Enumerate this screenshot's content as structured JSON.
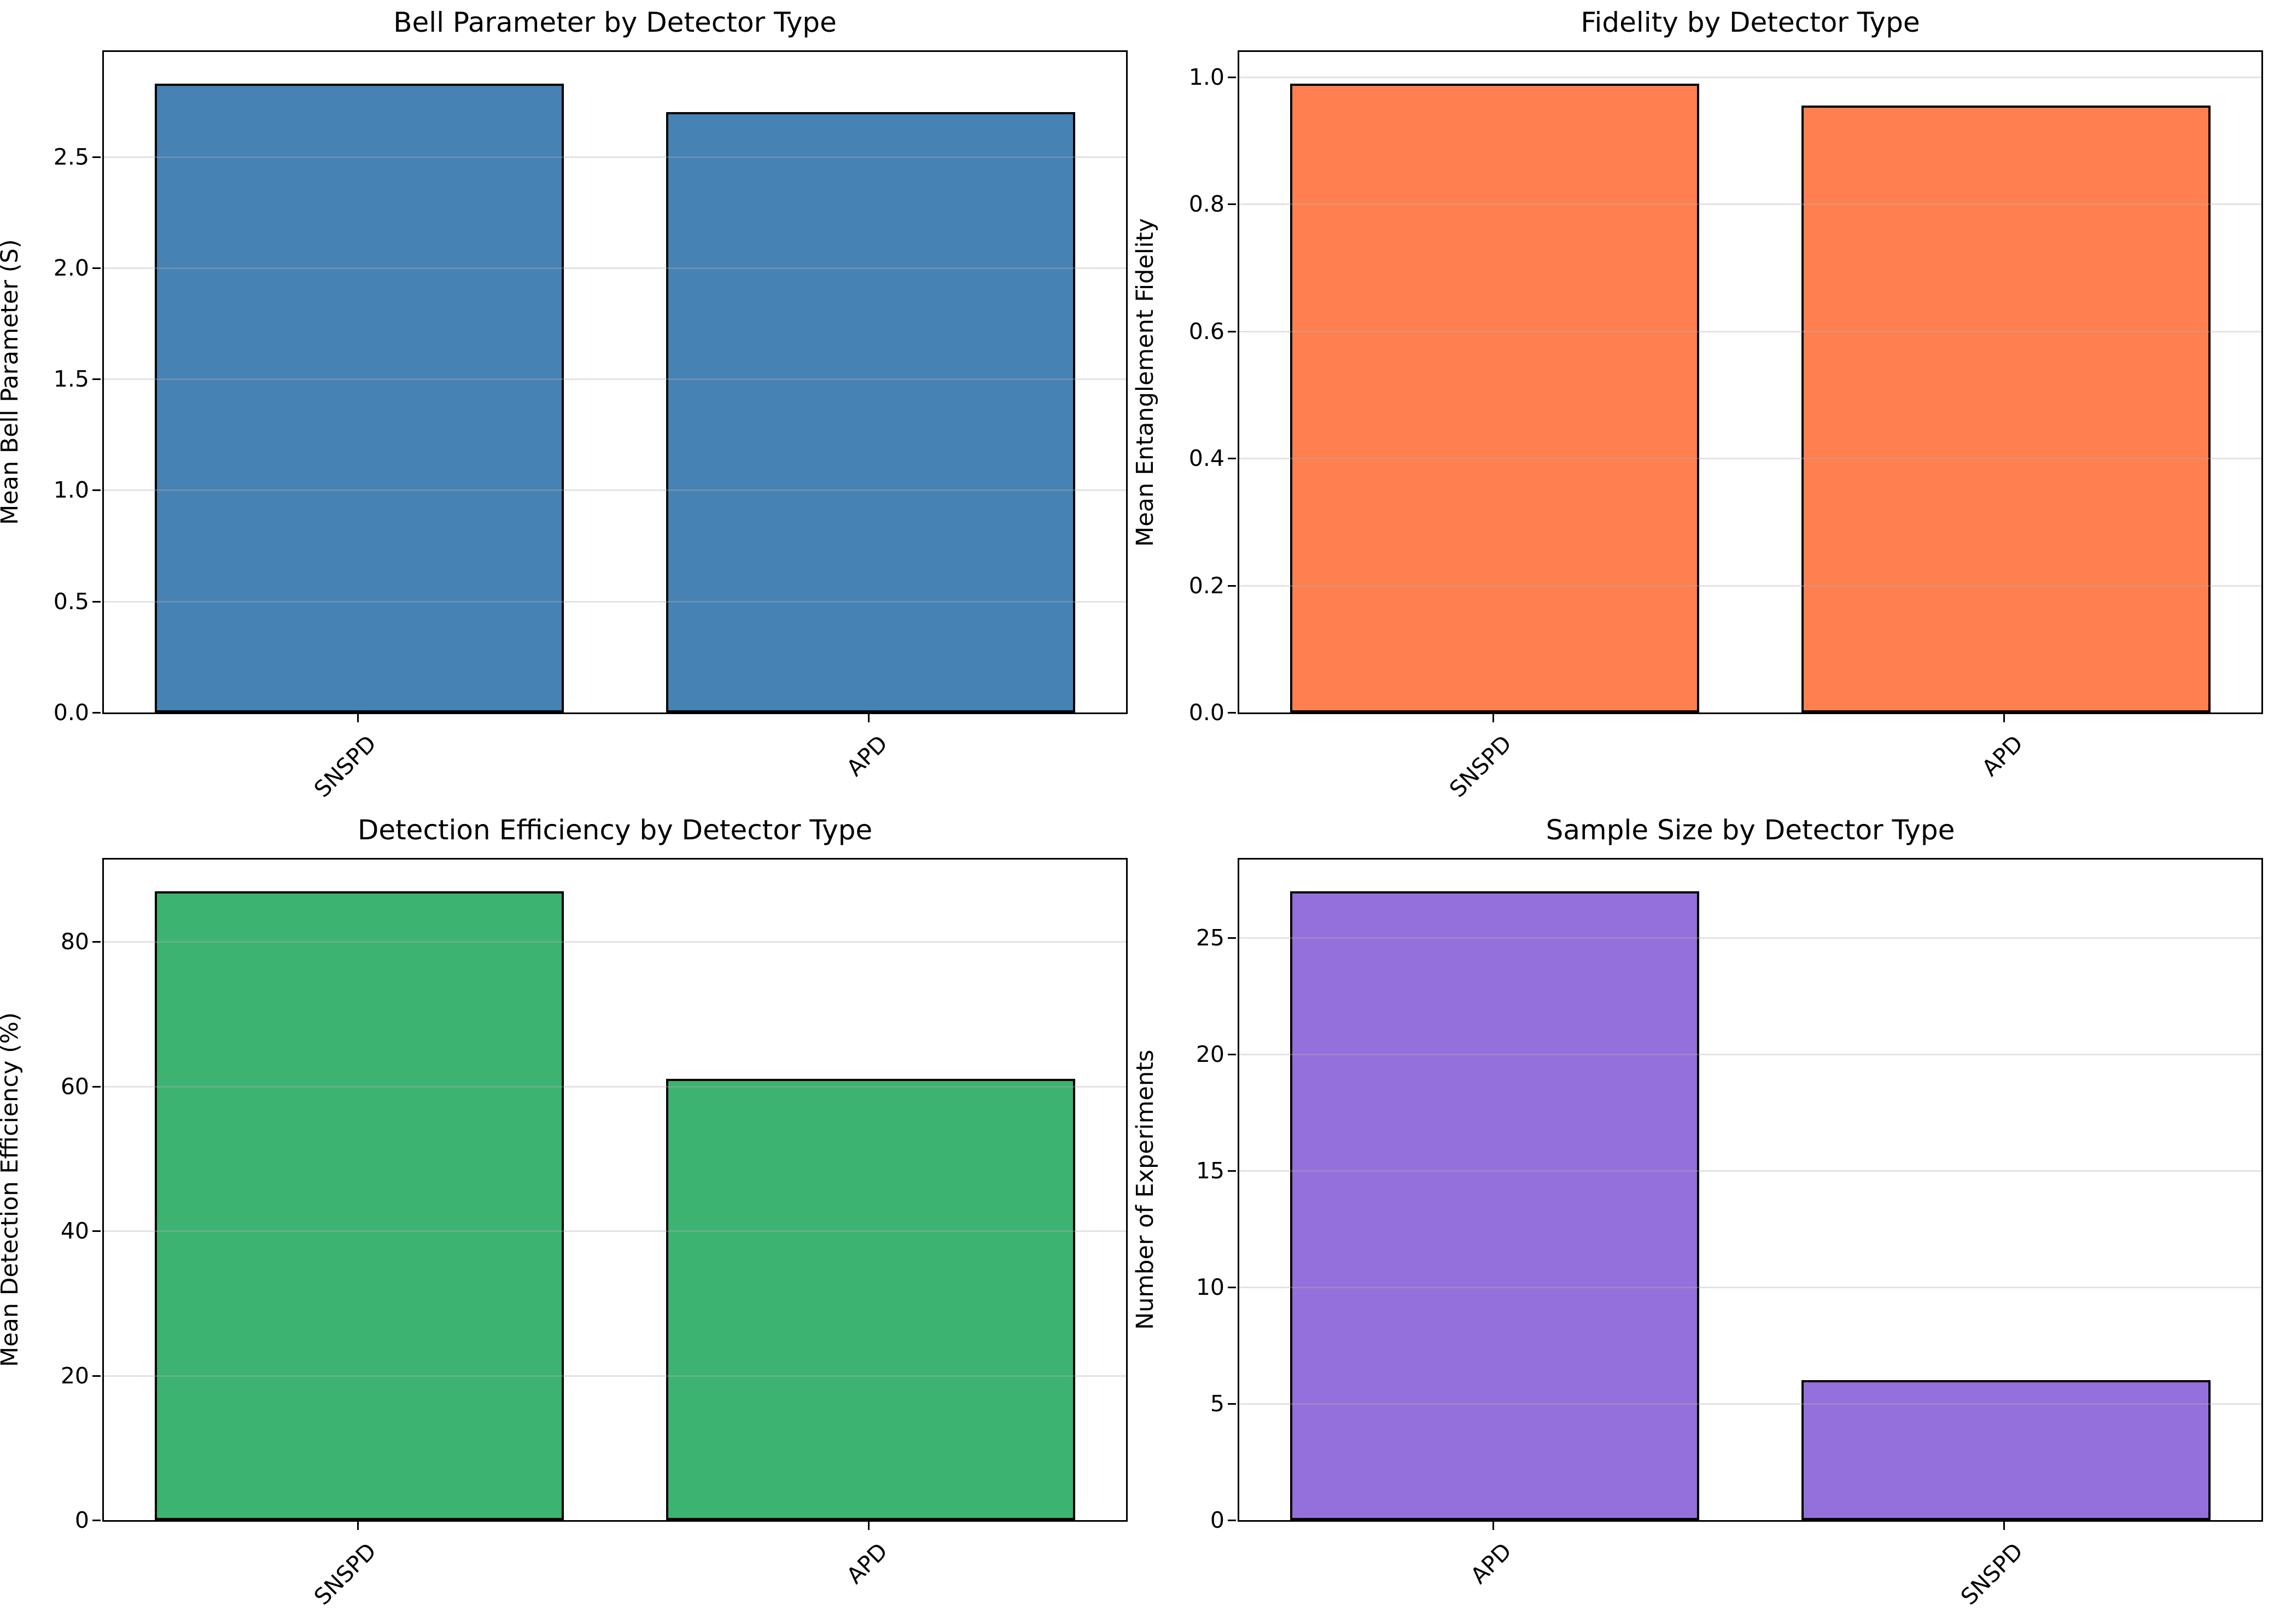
{
  "figure": {
    "background_color": "#ffffff",
    "spine_color": "#000000",
    "grid_color_rgba": "rgba(176,176,176,0.35)",
    "text_color": "#000000"
  },
  "chart_data": [
    {
      "type": "bar",
      "title": "Bell Parameter by Detector Type",
      "ylabel": "Mean Bell Parameter (S)",
      "xlabel": "",
      "categories": [
        "SNSPD",
        "APD"
      ],
      "values": [
        2.83,
        2.7
      ],
      "bar_color": "#4682B4",
      "edge_color": "#000000",
      "yticks": [
        0.0,
        0.5,
        1.0,
        1.5,
        2.0,
        2.5
      ],
      "ytick_labels": [
        "0.0",
        "0.5",
        "1.0",
        "1.5",
        "2.0",
        "2.5"
      ],
      "ylim": [
        0,
        2.9715
      ],
      "grid": true,
      "xtick_rotation": 45,
      "legend": "none"
    },
    {
      "type": "bar",
      "title": "Fidelity by Detector Type",
      "ylabel": "Mean Entanglement Fidelity",
      "xlabel": "",
      "categories": [
        "SNSPD",
        "APD"
      ],
      "values": [
        0.99,
        0.955
      ],
      "bar_color": "#FF7F50",
      "edge_color": "#000000",
      "yticks": [
        0.0,
        0.2,
        0.4,
        0.6,
        0.8,
        1.0
      ],
      "ytick_labels": [
        "0.0",
        "0.2",
        "0.4",
        "0.6",
        "0.8",
        "1.0"
      ],
      "ylim": [
        0,
        1.0395
      ],
      "grid": true,
      "xtick_rotation": 45,
      "legend": "none"
    },
    {
      "type": "bar",
      "title": "Detection Efficiency by Detector Type",
      "ylabel": "Mean Detection Efficiency (%)",
      "xlabel": "",
      "categories": [
        "SNSPD",
        "APD"
      ],
      "values": [
        87,
        61
      ],
      "bar_color": "#3CB371",
      "edge_color": "#000000",
      "yticks": [
        0,
        20,
        40,
        60,
        80
      ],
      "ytick_labels": [
        "0",
        "20",
        "40",
        "60",
        "80"
      ],
      "ylim": [
        0,
        91.35
      ],
      "grid": true,
      "xtick_rotation": 45,
      "legend": "none"
    },
    {
      "type": "bar",
      "title": "Sample Size by Detector Type",
      "ylabel": "Number of Experiments",
      "xlabel": "",
      "categories": [
        "APD",
        "SNSPD"
      ],
      "values": [
        27,
        6
      ],
      "bar_color": "#9370DB",
      "edge_color": "#000000",
      "yticks": [
        0,
        5,
        10,
        15,
        20,
        25
      ],
      "ytick_labels": [
        "0",
        "5",
        "10",
        "15",
        "20",
        "25"
      ],
      "ylim": [
        0,
        28.35
      ],
      "grid": true,
      "xtick_rotation": 45,
      "legend": "none"
    }
  ],
  "layout": {
    "grid_rows": 2,
    "grid_cols": 2
  }
}
